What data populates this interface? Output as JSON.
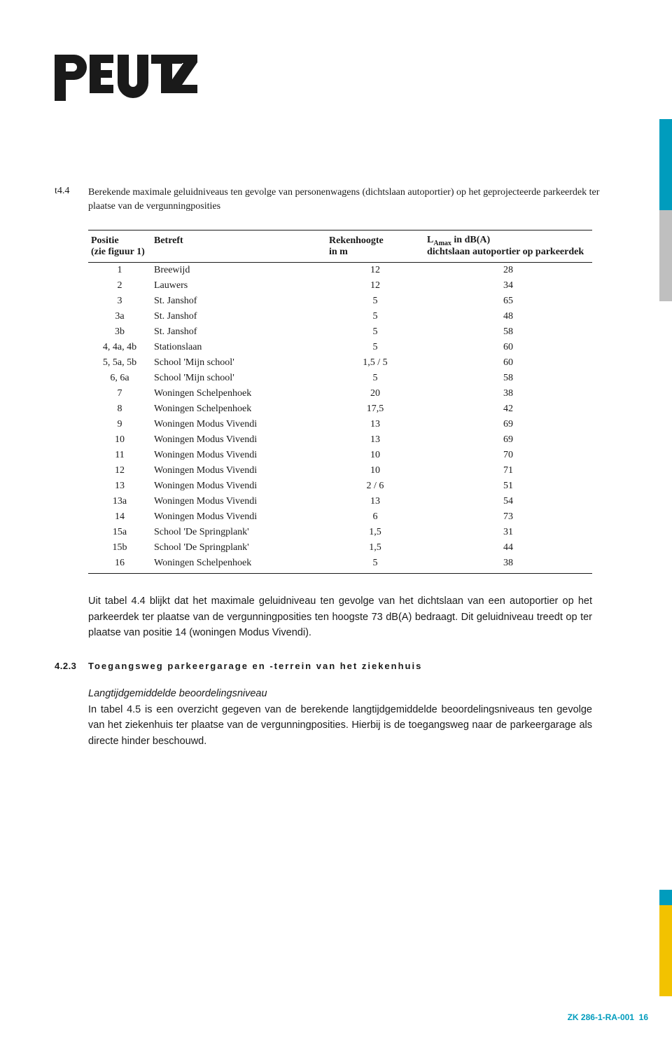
{
  "logo_text": "PEUTZ",
  "caption": {
    "num": "t4.4",
    "text": "Berekende maximale geluidniveaus ten gevolge van personenwagens (dichtslaan autoportier) op het geprojecteerde parkeerdek ter plaatse van de vergunningposities"
  },
  "table": {
    "header_row1": {
      "c1": "Positie",
      "c2": "Betreft",
      "c3": "Rekenhoogte",
      "c4_pre": "L",
      "c4_sub": "Amax",
      "c4_post": " in dB(A)"
    },
    "header_row2": {
      "c1": "(zie figuur 1)",
      "c2": "",
      "c3": "in m",
      "c4": "dichtslaan autoportier op parkeerdek"
    },
    "rows": [
      {
        "c1": "1",
        "c2": "Breewijd",
        "c3": "12",
        "c4": "28"
      },
      {
        "c1": "2",
        "c2": "Lauwers",
        "c3": "12",
        "c4": "34"
      },
      {
        "c1": "3",
        "c2": "St. Janshof",
        "c3": "5",
        "c4": "65"
      },
      {
        "c1": "3a",
        "c2": "St. Janshof",
        "c3": "5",
        "c4": "48"
      },
      {
        "c1": "3b",
        "c2": "St. Janshof",
        "c3": "5",
        "c4": "58"
      },
      {
        "c1": "4, 4a, 4b",
        "c2": "Stationslaan",
        "c3": "5",
        "c4": "60"
      },
      {
        "c1": "5, 5a, 5b",
        "c2": "School 'Mijn school'",
        "c3": "1,5 / 5",
        "c4": "60"
      },
      {
        "c1": "6, 6a",
        "c2": "School 'Mijn school'",
        "c3": "5",
        "c4": "58"
      },
      {
        "c1": "7",
        "c2": "Woningen Schelpenhoek",
        "c3": "20",
        "c4": "38"
      },
      {
        "c1": "8",
        "c2": "Woningen Schelpenhoek",
        "c3": "17,5",
        "c4": "42"
      },
      {
        "c1": "9",
        "c2": "Woningen Modus Vivendi",
        "c3": "13",
        "c4": "69"
      },
      {
        "c1": "10",
        "c2": "Woningen Modus Vivendi",
        "c3": "13",
        "c4": "69"
      },
      {
        "c1": "11",
        "c2": "Woningen Modus Vivendi",
        "c3": "10",
        "c4": "70"
      },
      {
        "c1": "12",
        "c2": "Woningen Modus Vivendi",
        "c3": "10",
        "c4": "71"
      },
      {
        "c1": "13",
        "c2": "Woningen Modus Vivendi",
        "c3": "2 / 6",
        "c4": "51"
      },
      {
        "c1": "13a",
        "c2": "Woningen Modus Vivendi",
        "c3": "13",
        "c4": "54"
      },
      {
        "c1": "14",
        "c2": "Woningen Modus Vivendi",
        "c3": "6",
        "c4": "73"
      },
      {
        "c1": "15a",
        "c2": "School 'De Springplank'",
        "c3": "1,5",
        "c4": "31"
      },
      {
        "c1": "15b",
        "c2": "School 'De Springplank'",
        "c3": "1,5",
        "c4": "44"
      },
      {
        "c1": "16",
        "c2": "Woningen Schelpenhoek",
        "c3": "5",
        "c4": "38"
      }
    ]
  },
  "paragraph1": "Uit tabel 4.4 blijkt dat het maximale geluidniveau ten gevolge van het dichtslaan van een autoportier op het parkeerdek ter plaatse van de vergunningposities ten hoogste 73 dB(A) bedraagt. Dit geluidniveau treedt op ter plaatse van positie 14 (woningen Modus Vivendi).",
  "section": {
    "num": "4.2.3",
    "title": "Toegangsweg parkeergarage en -terrein van het ziekenhuis"
  },
  "subheading": "Langtijdgemiddelde beoordelingsniveau",
  "paragraph2": "In tabel 4.5 is een overzicht gegeven van de berekende langtijdgemiddelde beoordelingsniveaus ten gevolge van het ziekenhuis ter plaatse van de vergunningposities. Hierbij is de toegangsweg naar de parkeergarage als directe hinder beschouwd.",
  "footer": {
    "code": "ZK 286-1-RA-001",
    "page": "16"
  },
  "colors": {
    "accent": "#009cbd",
    "yellow": "#f2c200",
    "gray": "#bfbfbf",
    "text": "#1a1a1a"
  }
}
